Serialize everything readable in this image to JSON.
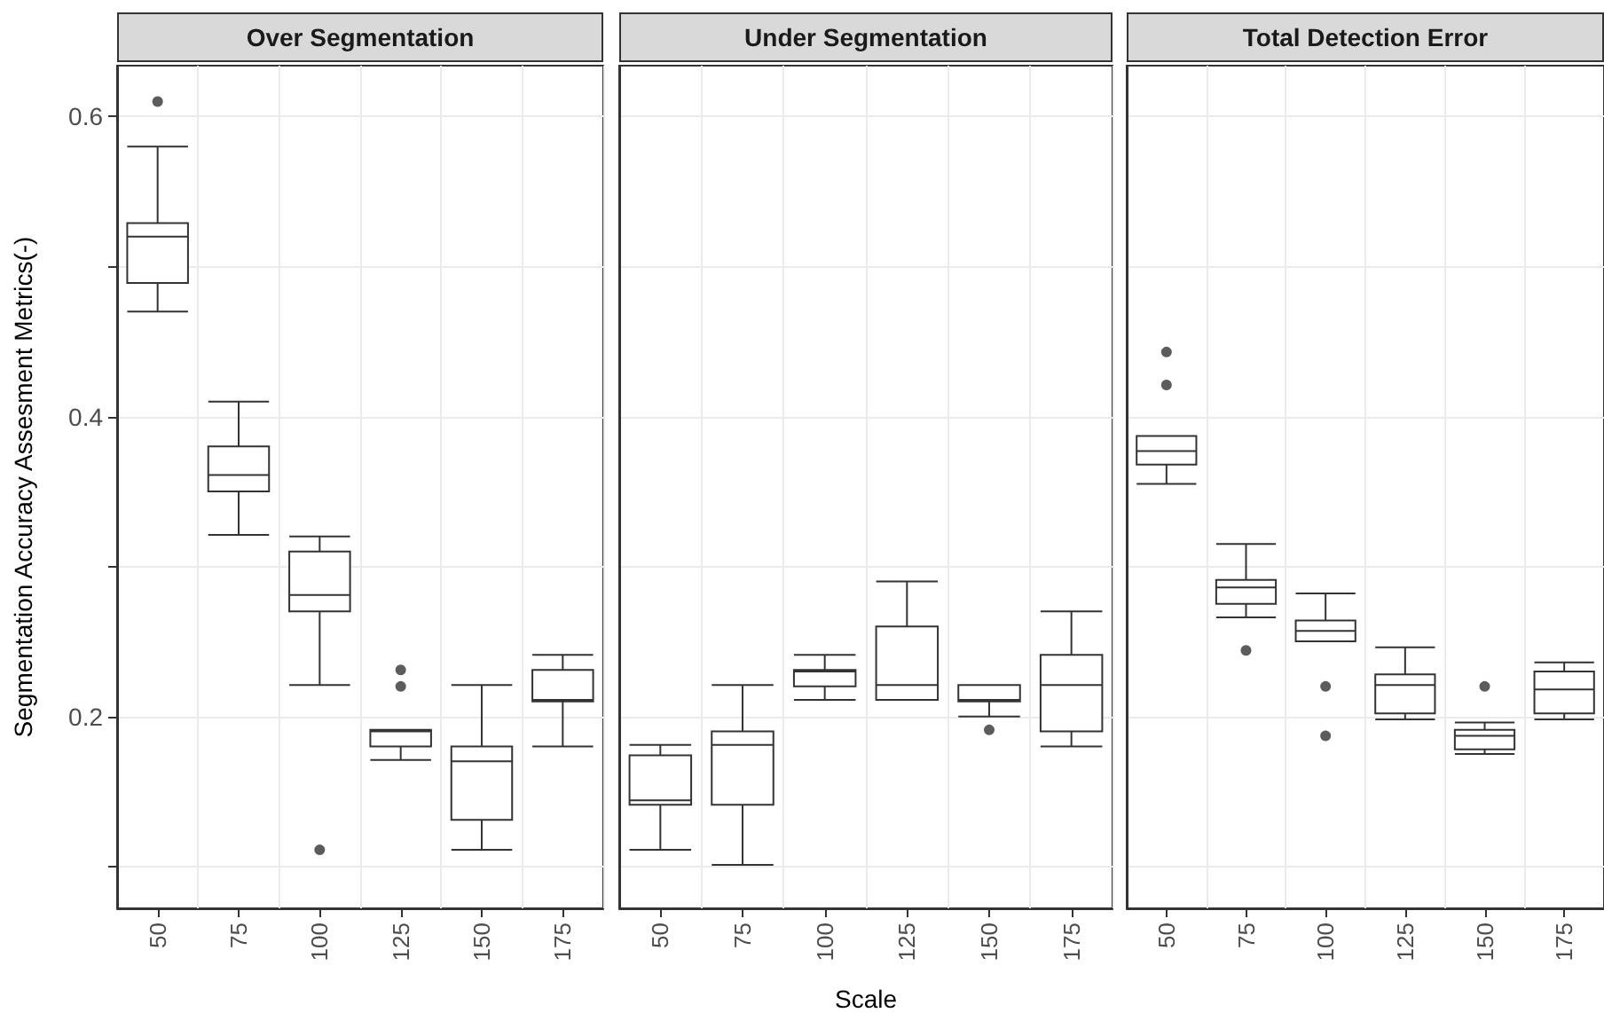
{
  "chart_data": [
    {
      "type": "box",
      "title": "Over Segmentation",
      "ylabel": "Segmentation Accuracy Assesment Metrics(-)",
      "categories": [
        "50",
        "75",
        "100",
        "125",
        "150",
        "175"
      ],
      "ylim": [
        0.072,
        0.634
      ],
      "yticks": [
        {
          "value": 0.1,
          "label": null
        },
        0.2,
        {
          "value": 0.3,
          "label": null
        },
        0.4,
        {
          "value": 0.5,
          "label": null
        },
        0.6
      ],
      "grid": true,
      "boxes": [
        {
          "low": 0.47,
          "q1": 0.489,
          "median": 0.52,
          "q3": 0.529,
          "high": 0.58,
          "outliers": [
            0.61
          ]
        },
        {
          "low": 0.321,
          "q1": 0.35,
          "median": 0.361,
          "q3": 0.38,
          "high": 0.41
        },
        {
          "low": 0.221,
          "q1": 0.27,
          "median": 0.281,
          "q3": 0.31,
          "high": 0.32,
          "outliers": [
            0.111
          ]
        },
        {
          "low": 0.171,
          "q1": 0.18,
          "median": 0.19,
          "q3": 0.191,
          "high": 0.191,
          "outliers": [
            0.231,
            0.22
          ]
        },
        {
          "low": 0.111,
          "q1": 0.131,
          "median": 0.17,
          "q3": 0.18,
          "high": 0.221
        },
        {
          "low": 0.18,
          "q1": 0.21,
          "median": 0.211,
          "q3": 0.231,
          "high": 0.241
        }
      ]
    },
    {
      "type": "box",
      "title": "Under Segmentation",
      "xlabel": "Scale",
      "categories": [
        "50",
        "75",
        "100",
        "125",
        "150",
        "175"
      ],
      "ylim": [
        0.072,
        0.634
      ],
      "yticks": [
        {
          "value": 0.1,
          "label": null
        },
        0.2,
        {
          "value": 0.3,
          "label": null
        },
        0.4,
        {
          "value": 0.5,
          "label": null
        },
        0.6
      ],
      "grid": true,
      "tick_labels": "x",
      "boxes": [
        {
          "low": 0.111,
          "q1": 0.141,
          "median": 0.144,
          "q3": 0.174,
          "high": 0.181
        },
        {
          "low": 0.101,
          "q1": 0.141,
          "median": 0.181,
          "q3": 0.19,
          "high": 0.221
        },
        {
          "low": 0.211,
          "q1": 0.22,
          "median": 0.23,
          "q3": 0.231,
          "high": 0.241
        },
        {
          "low": 0.211,
          "q1": 0.211,
          "median": 0.221,
          "q3": 0.26,
          "high": 0.29
        },
        {
          "low": 0.2,
          "q1": 0.21,
          "median": 0.211,
          "q3": 0.221,
          "high": 0.221,
          "outliers": [
            0.191
          ]
        },
        {
          "low": 0.18,
          "q1": 0.19,
          "median": 0.221,
          "q3": 0.241,
          "high": 0.27
        }
      ]
    },
    {
      "type": "box",
      "title": "Total Detection Error",
      "categories": [
        "50",
        "75",
        "100",
        "125",
        "150",
        "175"
      ],
      "ylim": [
        0.072,
        0.634
      ],
      "yticks": [
        {
          "value": 0.1,
          "label": null
        },
        0.2,
        {
          "value": 0.3,
          "label": null
        },
        0.4,
        {
          "value": 0.5,
          "label": null
        },
        0.6
      ],
      "grid": true,
      "tick_labels": "x",
      "boxes": [
        {
          "low": 0.355,
          "q1": 0.368,
          "median": 0.377,
          "q3": 0.387,
          "high": 0.387,
          "outliers": [
            0.443,
            0.421
          ]
        },
        {
          "low": 0.266,
          "q1": 0.275,
          "median": 0.286,
          "q3": 0.291,
          "high": 0.315,
          "outliers": [
            0.244
          ]
        },
        {
          "low": 0.25,
          "q1": 0.25,
          "median": 0.257,
          "q3": 0.264,
          "high": 0.282,
          "outliers": [
            0.22,
            0.187
          ]
        },
        {
          "low": 0.198,
          "q1": 0.202,
          "median": 0.221,
          "q3": 0.228,
          "high": 0.246
        },
        {
          "low": 0.175,
          "q1": 0.178,
          "median": 0.187,
          "q3": 0.191,
          "high": 0.196,
          "outliers": [
            0.22
          ]
        },
        {
          "low": 0.198,
          "q1": 0.202,
          "median": 0.218,
          "q3": 0.23,
          "high": 0.236
        }
      ]
    }
  ]
}
